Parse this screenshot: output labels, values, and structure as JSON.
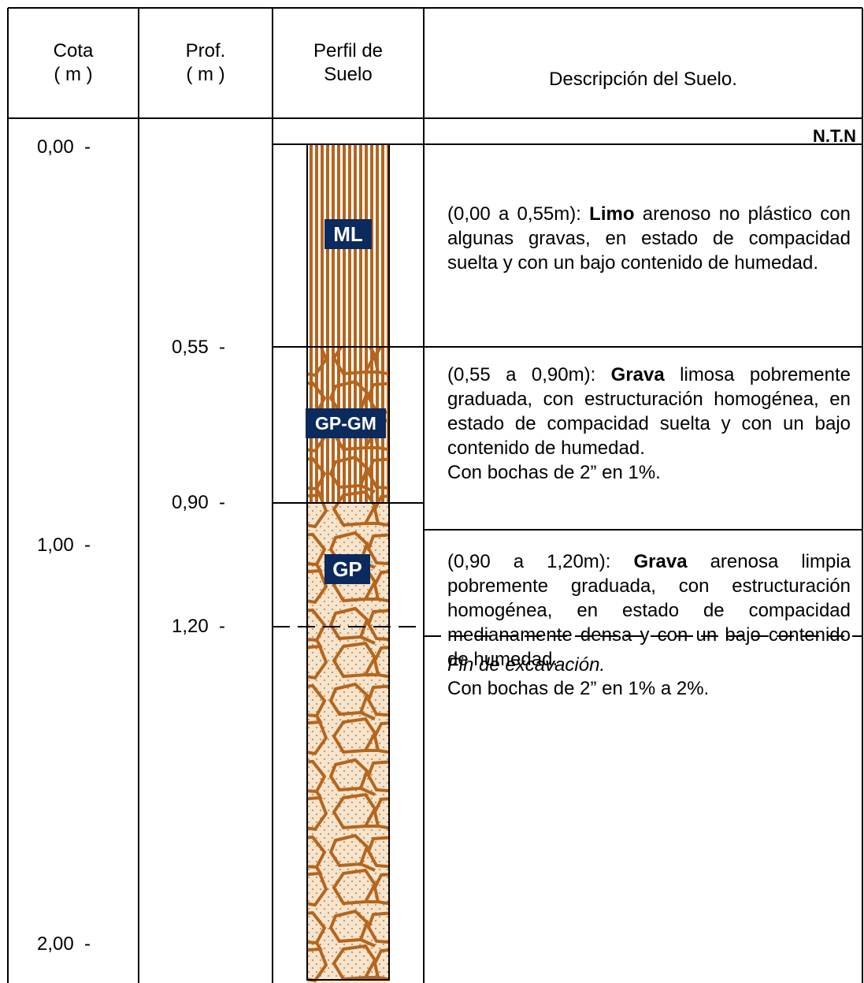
{
  "header": {
    "cota": "Cota",
    "cota_unit": "( m )",
    "prof": "Prof.",
    "prof_unit": "( m )",
    "profile_line1": "Perfil de",
    "profile_line2": "Suelo",
    "description": "Descripción del Suelo."
  },
  "surface_label": "N.T.N",
  "elevations": [
    "0,00  -",
    "1,00  -",
    "2,00  -"
  ],
  "depths": [
    "0,55  -",
    "0,90  -",
    "1,20  -"
  ],
  "layers": [
    {
      "symbol": "ML",
      "prefix": "(0,00 a 0,55m): ",
      "bold": "Limo",
      "text": " arenoso no plástico con algunas gravas, en estado de compacidad suelta y con un bajo contenido de humedad."
    },
    {
      "symbol": "GP-GM",
      "prefix": "(0,55 a 0,90m): ",
      "bold": "Grava",
      "text": " limosa pobremente graduada, con estructu­ración homogénea, en estado de compacidad suelta y con un bajo contenido de humedad.",
      "note": "Con bochas de 2” en 1%."
    },
    {
      "symbol": "GP",
      "prefix": "(0,90 a 1,20m): ",
      "bold": "Grava",
      "text": " arenosa limpia pobremente graduada, con estructu­ración homogénea, en estado de compacidad medianamente densa y con un bajo contenido de humedad.",
      "note": "Con bochas de 2” en 1% a 2%."
    }
  ],
  "end_note": "Fin de excavación."
}
